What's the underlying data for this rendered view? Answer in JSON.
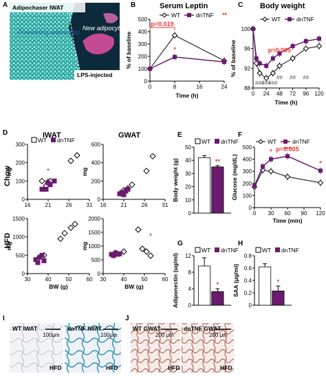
{
  "colors": {
    "wt": "#ffffff",
    "dntnf": "#6a1b6e",
    "stat": "#e53935",
    "hash": "#555555"
  },
  "panels": {
    "A": {
      "letter": "A",
      "title": "Adipochaser IWAT",
      "label1": "Preexisting adipocytes",
      "label2": "New adipocytes",
      "label3": "LPS-injected"
    },
    "B": {
      "letter": "B",
      "title": "Serum Leptin"
    },
    "C": {
      "letter": "C",
      "title": "Body weight"
    },
    "D": {
      "letter": "D",
      "col1": "IWAT",
      "col2": "GWAT",
      "row1": "Chow",
      "row2": "HFD",
      "ymg": "mg",
      "xbw": "BW (g)"
    },
    "E": {
      "letter": "E"
    },
    "F": {
      "letter": "F"
    },
    "G": {
      "letter": "G"
    },
    "H": {
      "letter": "H"
    },
    "I": {
      "letter": "I",
      "img1_label": "WT IWAT",
      "img2_label": "dnTNF IWAT",
      "scale": "100μm",
      "diet": "HFD"
    },
    "J": {
      "letter": "J",
      "img1_label": "WT GWAT",
      "img2_label": "dnTNF GWAT",
      "scale": "200 μm",
      "diet": "HFD"
    }
  },
  "chart_data": [
    {
      "id": "B",
      "type": "line",
      "title": "Serum Leptin",
      "xlabel": "Time (h)",
      "ylabel": "% of baseline",
      "x": [
        0,
        8,
        24
      ],
      "xticks": [
        0,
        8,
        16,
        24
      ],
      "ylim": [
        0,
        500
      ],
      "yticks": [
        0,
        100,
        200,
        300,
        400,
        500
      ],
      "series": [
        {
          "name": "WT",
          "values": [
            100,
            370,
            165
          ]
        },
        {
          "name": "dnTNF",
          "values": [
            100,
            195,
            155
          ]
        }
      ],
      "annotations": {
        "p": "p=0.019",
        "stars_8h": "*",
        "stars_legend": "**"
      }
    },
    {
      "id": "C",
      "type": "line",
      "title": "Body weight",
      "xlabel": "Time (h)",
      "ylabel": "% of baseline",
      "x": [
        0,
        6,
        12,
        24,
        36,
        48,
        72,
        96,
        120
      ],
      "xticks": [
        0,
        24,
        48,
        72,
        96,
        120
      ],
      "ylim": [
        88,
        100
      ],
      "yticks": [
        88,
        92,
        96,
        100
      ],
      "series": [
        {
          "name": "WT",
          "values": [
            100,
            93,
            91,
            90,
            91,
            92.5,
            94,
            96,
            96.5
          ]
        },
        {
          "name": "dnTNF",
          "values": [
            100,
            94,
            93,
            92.5,
            94,
            95,
            96.5,
            97.5,
            98
          ]
        }
      ],
      "annotations": {
        "p": "p=0.095",
        "hashes": [
          "###",
          "###",
          "###",
          "##",
          "##",
          "##"
        ]
      }
    },
    {
      "id": "D-IWAT-Chow",
      "type": "scatter",
      "xlabel": "",
      "ylabel": "mg",
      "xlim": [
        16,
        31
      ],
      "xticks": [
        16,
        21,
        26,
        31
      ],
      "ylim": [
        0,
        300
      ],
      "yticks": [
        0,
        100,
        200,
        300
      ],
      "series": [
        {
          "name": "WT",
          "points": [
            [
              19.5,
              100
            ],
            [
              21,
              95
            ],
            [
              21.5,
              100
            ],
            [
              26.5,
              210
            ],
            [
              28,
              240
            ],
            [
              20.5,
              75
            ]
          ]
        },
        {
          "name": "dnTNF",
          "points": [
            [
              19.5,
              55
            ],
            [
              20.5,
              55
            ],
            [
              21.5,
              80
            ],
            [
              22.5,
              100
            ],
            [
              21,
              90
            ]
          ]
        }
      ],
      "annotations": {
        "star": "*"
      }
    },
    {
      "id": "D-GWAT-Chow",
      "type": "scatter",
      "xlabel": "",
      "ylabel": "mg",
      "xlim": [
        16,
        31
      ],
      "xticks": [
        16,
        21,
        26,
        31
      ],
      "ylim": [
        0,
        600
      ],
      "yticks": [
        0,
        200,
        400,
        600
      ],
      "series": [
        {
          "name": "WT",
          "points": [
            [
              21,
              100
            ],
            [
              22,
              120
            ],
            [
              23,
              160
            ],
            [
              26.5,
              310
            ],
            [
              28,
              470
            ]
          ]
        },
        {
          "name": "dnTNF",
          "points": [
            [
              20,
              60
            ],
            [
              20.5,
              75
            ],
            [
              21.5,
              90
            ],
            [
              22,
              110
            ],
            [
              21,
              50
            ]
          ]
        }
      ]
    },
    {
      "id": "D-IWAT-HFD",
      "type": "scatter",
      "xlabel": "BW (g)",
      "ylabel": "mg",
      "xlim": [
        30,
        60
      ],
      "xticks": [
        30,
        40,
        50,
        60
      ],
      "ylim": [
        0,
        1500
      ],
      "yticks": [
        0,
        500,
        1000,
        1500
      ],
      "series": [
        {
          "name": "WT",
          "points": [
            [
              35,
              400
            ],
            [
              38,
              500
            ],
            [
              46,
              950
            ],
            [
              48,
              1100
            ],
            [
              51,
              1250
            ],
            [
              53,
              1350
            ]
          ]
        },
        {
          "name": "dnTNF",
          "points": [
            [
              34,
              380
            ],
            [
              35,
              300
            ],
            [
              36,
              450
            ],
            [
              37,
              500
            ],
            [
              38,
              350
            ]
          ]
        }
      ]
    },
    {
      "id": "D-GWAT-HFD",
      "type": "scatter",
      "xlabel": "BW (g)",
      "ylabel": "mg",
      "xlim": [
        30,
        60
      ],
      "xticks": [
        30,
        40,
        50,
        60
      ],
      "ylim": [
        0,
        2000
      ],
      "yticks": [
        0,
        500,
        1000,
        1500,
        2000
      ],
      "series": [
        {
          "name": "WT",
          "points": [
            [
              36,
              750
            ],
            [
              40,
              800
            ],
            [
              47,
              1600
            ],
            [
              49,
              900
            ],
            [
              51,
              800
            ],
            [
              53,
              650
            ]
          ]
        },
        {
          "name": "dnTNF",
          "points": [
            [
              34,
              700
            ],
            [
              35,
              650
            ],
            [
              36,
              750
            ],
            [
              37,
              700
            ],
            [
              38,
              720
            ]
          ]
        }
      ],
      "annotations": {
        "star": "*"
      }
    },
    {
      "id": "E",
      "type": "bar",
      "ylabel": "Body weight (g)",
      "categories": [
        "WT",
        "dnTNF"
      ],
      "values": [
        42,
        35
      ],
      "errors": [
        1.5,
        1
      ],
      "ylim": [
        0,
        50
      ],
      "yticks": [
        0,
        10,
        20,
        30,
        40,
        50
      ],
      "annotations": {
        "stars": "**"
      }
    },
    {
      "id": "F",
      "type": "line",
      "xlabel": "Time (min)",
      "ylabel": "Glucose (mg/dL)",
      "x": [
        0,
        15,
        30,
        60,
        120
      ],
      "xticks": [
        0,
        30,
        60,
        90,
        120
      ],
      "ylim": [
        0,
        500
      ],
      "yticks": [
        0,
        100,
        200,
        300,
        400,
        500
      ],
      "series": [
        {
          "name": "WT",
          "values": [
            170,
            310,
            300,
            255,
            205
          ]
        },
        {
          "name": "dnTNF",
          "values": [
            180,
            340,
            400,
            425,
            305
          ]
        }
      ],
      "annotations": {
        "p": "p=0.005",
        "stars": [
          "*",
          "***"
        ],
        "stars_end": "*"
      }
    },
    {
      "id": "G",
      "type": "bar",
      "ylabel": "Adiponectin (ug/ml)",
      "categories": [
        "WT",
        "dnTNF"
      ],
      "values": [
        9.5,
        3.3
      ],
      "errors": [
        2,
        0.7
      ],
      "ylim": [
        0,
        12
      ],
      "yticks": [
        0,
        4,
        8,
        12
      ],
      "annotations": {
        "stars": "*"
      }
    },
    {
      "id": "H",
      "type": "bar",
      "ylabel": "SAA (μg/ml)",
      "categories": [
        "WT",
        "dnTNF"
      ],
      "values": [
        0.62,
        0.23
      ],
      "errors": [
        0.05,
        0.08
      ],
      "ylim": [
        0,
        0.8
      ],
      "yticks": [
        0,
        0.2,
        0.4,
        0.6,
        0.8
      ],
      "annotations": {
        "stars": "*"
      }
    }
  ],
  "legend": {
    "wt": "WT",
    "dntnf": "dnTNF"
  }
}
